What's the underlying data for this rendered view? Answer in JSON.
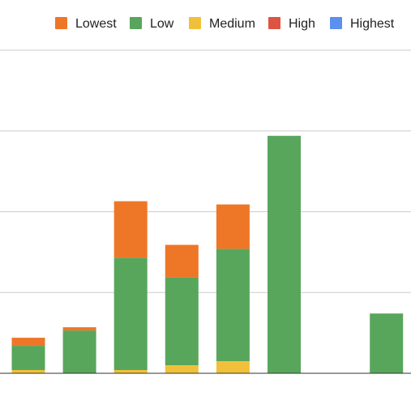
{
  "chart_data": {
    "type": "bar",
    "stacked": true,
    "categories": [
      "",
      "",
      "",
      "",
      "",
      "",
      "",
      ""
    ],
    "series": [
      {
        "name": "Lowest",
        "color": "#ee7627",
        "values": [
          10,
          4,
          70,
          40,
          55,
          0,
          0,
          0
        ]
      },
      {
        "name": "Low",
        "color": "#58a65c",
        "values": [
          30,
          53,
          139,
          109,
          139,
          294,
          0,
          74
        ]
      },
      {
        "name": "Medium",
        "color": "#f1c03a",
        "values": [
          4,
          0,
          4,
          10,
          15,
          0,
          0,
          0
        ]
      },
      {
        "name": "High",
        "color": "#de5443",
        "values": [
          0,
          0,
          0,
          0,
          0,
          0,
          0,
          0
        ]
      },
      {
        "name": "Highest",
        "color": "#5b8ff0",
        "values": [
          0,
          0,
          0,
          0,
          0,
          0,
          0,
          0
        ]
      }
    ],
    "ylim": [
      0,
      400
    ],
    "grid": true,
    "legend_position": "top-right"
  }
}
